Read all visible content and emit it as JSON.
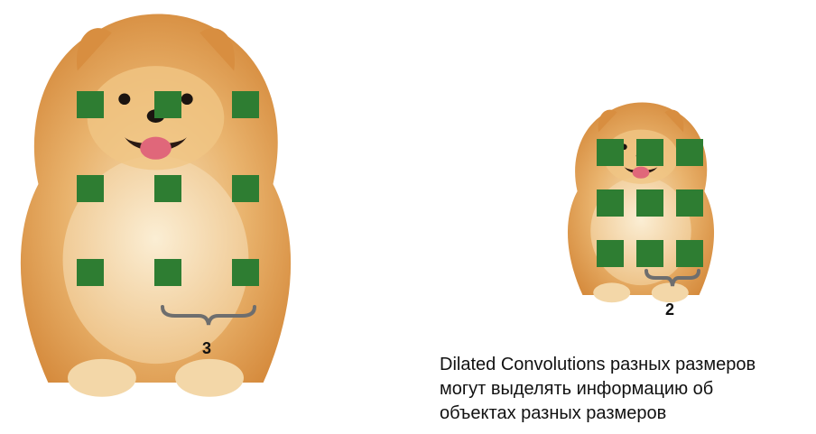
{
  "colors": {
    "kernel_cell": "#2e7d32",
    "brace": "#6e6e6e",
    "fur_main": "#e2a356",
    "fur_light": "#f6dfb7",
    "tongue": "#e0677a"
  },
  "figures": [
    {
      "id": "large-dog",
      "image": "pomeranian-dog",
      "kernel": {
        "rows": 3,
        "cols": 3
      },
      "dilation_label": "3"
    },
    {
      "id": "small-dog",
      "image": "pomeranian-dog",
      "kernel": {
        "rows": 3,
        "cols": 3
      },
      "dilation_label": "2"
    }
  ],
  "caption": {
    "lines": [
      "Dilated Convolutions разных размеров",
      "могут выделять информацию об",
      "объектах разных размеров"
    ]
  }
}
